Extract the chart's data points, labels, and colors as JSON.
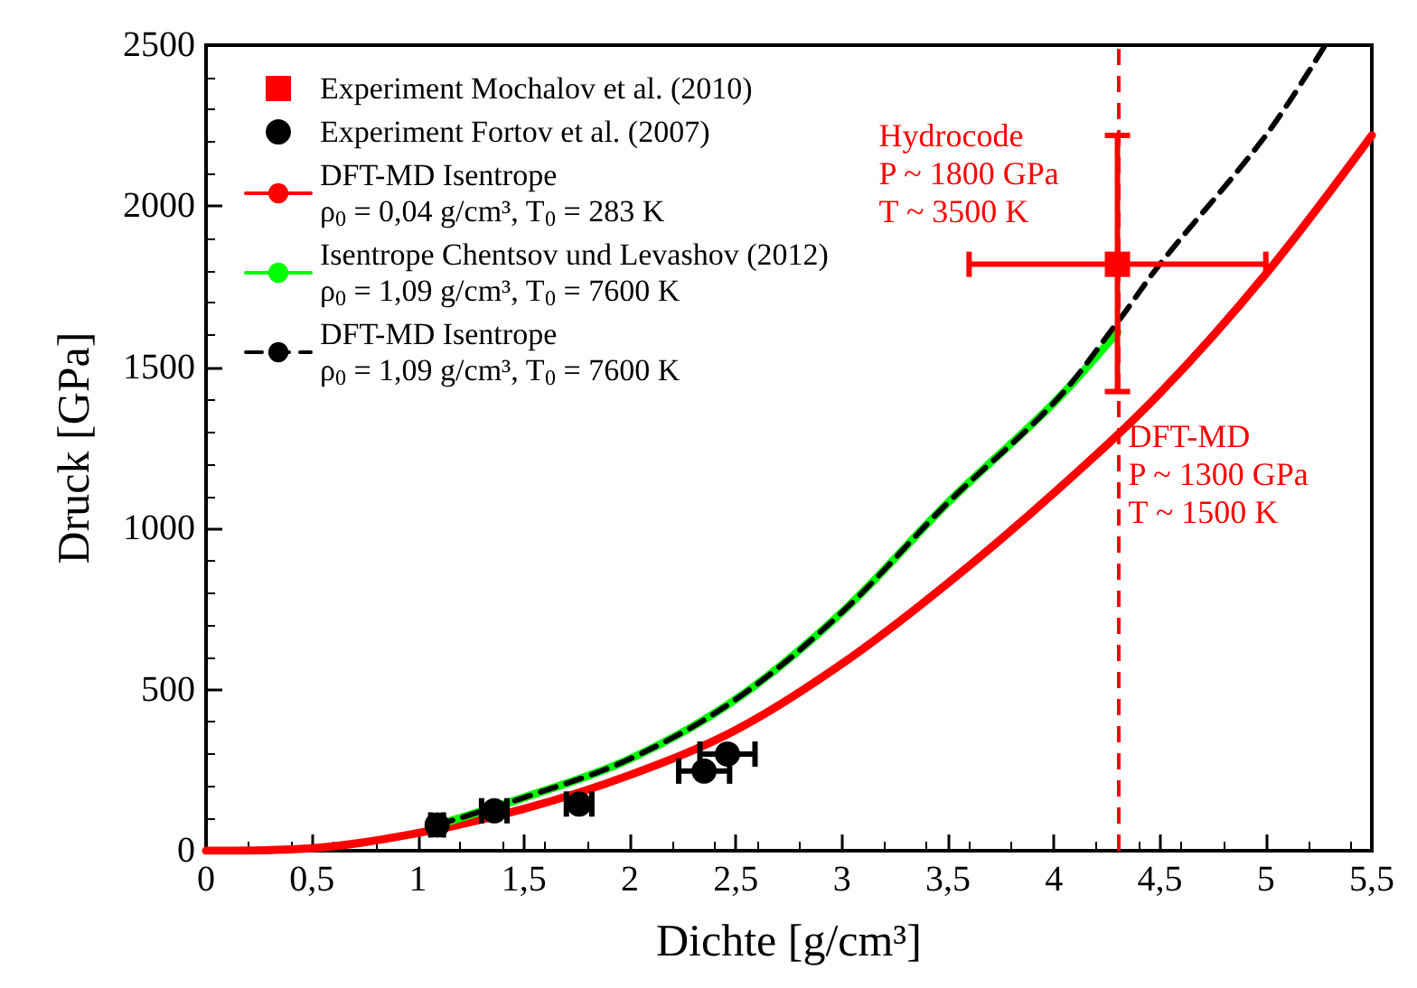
{
  "chart_data": {
    "type": "line",
    "xlabel": "Dichte [g/cm³]",
    "ylabel": "Druck [GPa]",
    "xlim": [
      0,
      5.5
    ],
    "ylim": [
      0,
      2500
    ],
    "xticks": [
      0,
      {
        "value": 0.5,
        "label": "0,5"
      },
      1,
      {
        "value": 1.5,
        "label": "1,5"
      },
      2,
      {
        "value": 2.5,
        "label": "2,5"
      },
      3,
      {
        "value": 3.5,
        "label": "3,5"
      },
      4,
      {
        "value": 4.5,
        "label": "4,5"
      },
      5,
      {
        "value": 5.5,
        "label": "5,5"
      }
    ],
    "yticks": [
      0,
      500,
      1000,
      1500,
      2000,
      2500
    ],
    "grid": false,
    "legend": "top left",
    "series": [
      {
        "name": "Experiment Mochalov et al. (2010)",
        "type": "scatter",
        "marker": "square",
        "color": "#ff0000",
        "x": [
          4.3
        ],
        "values": [
          1820
        ],
        "errors": [
          [
            1425,
            2220
          ]
        ],
        "xerrors": [
          [
            3.6,
            5.0
          ]
        ]
      },
      {
        "name": "Experiment Fortov et al. (2007)",
        "type": "scatter",
        "marker": "circle",
        "color": "#000000",
        "x": [
          1.09,
          1.36,
          1.76,
          2.35,
          2.46
        ],
        "values": [
          80,
          124,
          145,
          247,
          300
        ],
        "xerrors": [
          0.03,
          0.06,
          0.06,
          0.12,
          0.13
        ]
      },
      {
        "name": "DFT-MD Isentrope\nρ$_{0}$ = 0,04 g/cm³, T$_{0}$ = 283 K",
        "line_style": "solid",
        "color": "#ff0000",
        "x": [
          0,
          0.5,
          1,
          1.5,
          2,
          2.5,
          3,
          3.5,
          4,
          4.5,
          5,
          5.5
        ],
        "values": [
          0,
          8,
          55,
          130,
          235,
          375,
          580,
          830,
          1110,
          1420,
          1790,
          2220
        ]
      },
      {
        "name": "Isentrope Chentsov und Levashov (2012)\nρ$_{0}$ = 1,09 g/cm³, T$_{0}$ = 7600 K",
        "line_style": "solid",
        "color": "#00ff00",
        "x": [
          1.09,
          1.5,
          2,
          2.5,
          3,
          3.5,
          4,
          4.3
        ],
        "values": [
          80,
          165,
          285,
          470,
          740,
          1080,
          1390,
          1610
        ]
      },
      {
        "name": "DFT-MD Isentrope\nρ$_{0}$ = 1,09 g/cm³, T$_{0}$ = 7600 K",
        "line_style": "dashed",
        "color": "#000000",
        "x": [
          1.09,
          1.5,
          2,
          2.5,
          3,
          3.5,
          4,
          4.3,
          4.5,
          5,
          5.28
        ],
        "values": [
          80,
          165,
          285,
          470,
          740,
          1080,
          1390,
          1640,
          1820,
          2220,
          2500
        ]
      }
    ],
    "ref_lines": [
      {
        "axis": "x",
        "value": 4.3,
        "color": "#ff0000",
        "line_style": "dashed"
      }
    ],
    "annotations": [
      {
        "text": "Hydrocode\nP ~ 1800 GPa\nT ~ 3500 K",
        "x": 4.3,
        "y": 1820
      },
      {
        "text": "DFT-MD\nP ~ 1300 GPa\nT ~ 1500 K",
        "x": 4.3,
        "y": 1300
      }
    ]
  }
}
